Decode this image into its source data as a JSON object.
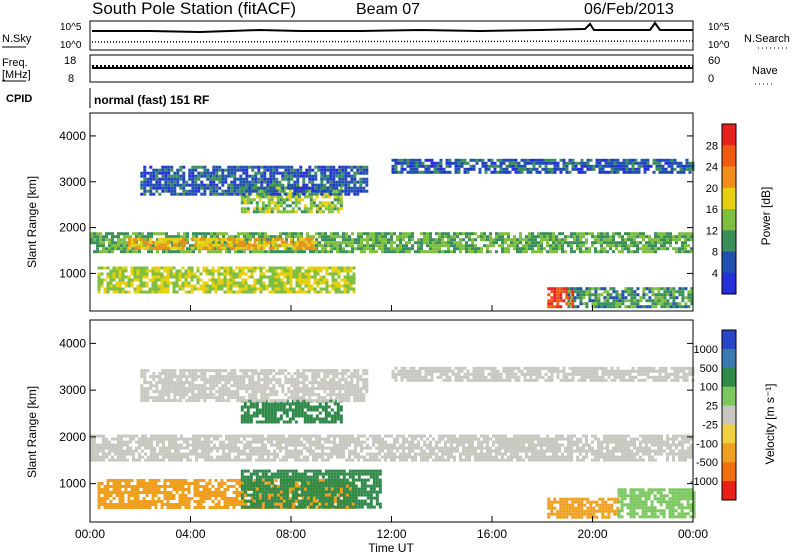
{
  "header": {
    "title": "South Pole Station (fitACF)",
    "beam": "Beam 07",
    "date": "06/Feb/2013"
  },
  "info": {
    "nsky_label": "N.Sky",
    "nsearch_label": "N.Search",
    "freq_label_line1": "Freq.",
    "freq_label_line2": "[MHz]",
    "nave_label": "Nave",
    "cpid_label": "CPID",
    "cpid_text": "normal (fast) 151 RF",
    "noise_ticks": [
      "10^5",
      "10^0"
    ],
    "freq_ticks": [
      "18",
      "8"
    ],
    "nave_ticks": [
      "60",
      "0"
    ]
  },
  "chart_data": [
    {
      "type": "heatmap",
      "panel": "power",
      "ylabel": "Slant Range [km]",
      "ylim": [
        180,
        4500
      ],
      "yticks": [
        "1000",
        "2000",
        "3000",
        "4000"
      ],
      "colorbar_label": "Power [dB]",
      "colorbar_ticks": [
        "28",
        "24",
        "20",
        "16",
        "12",
        "8",
        "4"
      ],
      "colorbar_colors": [
        "#e8201e",
        "#f05a10",
        "#f0901a",
        "#e8d010",
        "#7fbf40",
        "#3a8f5a",
        "#2050b0",
        "#2530d8"
      ],
      "bands": [
        {
          "t0": 0.0,
          "t1": 24.0,
          "r0": 1480,
          "r1": 1900,
          "level": 12
        },
        {
          "t0": 0.3,
          "t1": 10.5,
          "r0": 600,
          "r1": 1150,
          "level": 16
        },
        {
          "t0": 1.5,
          "t1": 9.0,
          "r0": 1550,
          "r1": 1780,
          "level": 20
        },
        {
          "t0": 6.0,
          "t1": 10.0,
          "r0": 2350,
          "r1": 2900,
          "level": 14
        },
        {
          "t0": 2.0,
          "t1": 11.0,
          "r0": 2700,
          "r1": 3350,
          "level": 6
        },
        {
          "t0": 12.0,
          "t1": 24.0,
          "r0": 3200,
          "r1": 3500,
          "level": 6
        },
        {
          "t0": 18.2,
          "t1": 19.2,
          "r0": 300,
          "r1": 700,
          "level": 28
        },
        {
          "t0": 19.0,
          "t1": 24.0,
          "r0": 300,
          "r1": 700,
          "level": 10
        }
      ]
    },
    {
      "type": "heatmap",
      "panel": "velocity",
      "ylabel": "Slant Range [km]",
      "xlabel": "Time UT",
      "ylim": [
        180,
        4500
      ],
      "xlim": [
        "00:00",
        "24:00"
      ],
      "yticks": [
        "1000",
        "2000",
        "3000",
        "4000"
      ],
      "xticks": [
        "00:00",
        "04:00",
        "08:00",
        "12:00",
        "16:00",
        "20:00",
        "00:00"
      ],
      "colorbar_label": "Velocity [m s⁻¹]",
      "colorbar_ticks": [
        "1000",
        "500",
        "100",
        "25",
        "-25",
        "-100",
        "-500",
        "-1000"
      ],
      "colorbar_colors": [
        "#2a45c8",
        "#3a7ab0",
        "#2f8a4a",
        "#7cc860",
        "#c8c8c0",
        "#f0d040",
        "#f0a020",
        "#f07010",
        "#e82018"
      ],
      "bands": [
        {
          "t0": 0.0,
          "t1": 24.0,
          "r0": 1500,
          "r1": 2050,
          "level": 0
        },
        {
          "t0": 0.3,
          "t1": 10.5,
          "r0": 500,
          "r1": 1100,
          "level": -250
        },
        {
          "t0": 6.0,
          "t1": 11.5,
          "r0": 500,
          "r1": 1300,
          "level": 150
        },
        {
          "t0": 6.0,
          "t1": 10.0,
          "r0": 2300,
          "r1": 2800,
          "level": 200
        },
        {
          "t0": 2.0,
          "t1": 11.0,
          "r0": 2800,
          "r1": 3450,
          "level": 0
        },
        {
          "t0": 12.0,
          "t1": 24.0,
          "r0": 3200,
          "r1": 3500,
          "level": 0
        },
        {
          "t0": 18.2,
          "t1": 21.0,
          "r0": 300,
          "r1": 700,
          "level": -300
        },
        {
          "t0": 21.0,
          "t1": 24.0,
          "r0": 300,
          "r1": 900,
          "level": 80
        }
      ]
    }
  ]
}
